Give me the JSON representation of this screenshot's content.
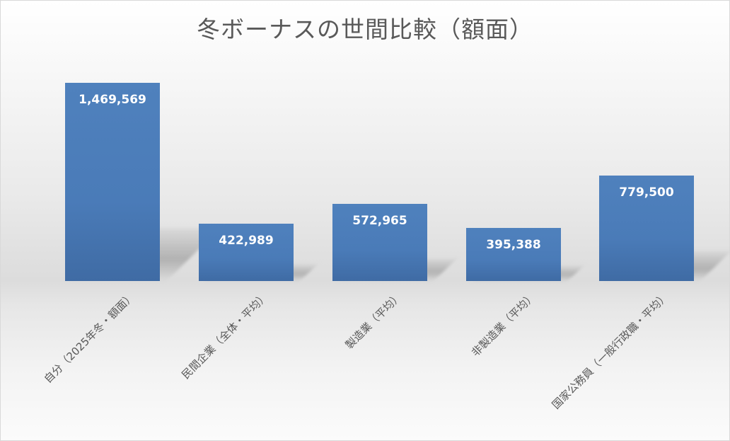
{
  "chart_data": {
    "type": "bar",
    "title": "冬ボーナスの世間比較（額面）",
    "categories": [
      "自分（2025年冬・額面）",
      "民間企業（全体・平均）",
      "製造業（平均）",
      "非製造業（平均）",
      "国家公務員（一般行政職・平均）"
    ],
    "values": [
      1469569,
      422989,
      572965,
      395388,
      779500
    ],
    "data_labels": [
      "1,469,569",
      "422,989",
      "572,965",
      "395,388",
      "779,500"
    ],
    "xlabel": "",
    "ylabel": "",
    "grid": false,
    "legend": "none",
    "bar_color": "#4f81bd",
    "label_color": "#ffffff"
  }
}
